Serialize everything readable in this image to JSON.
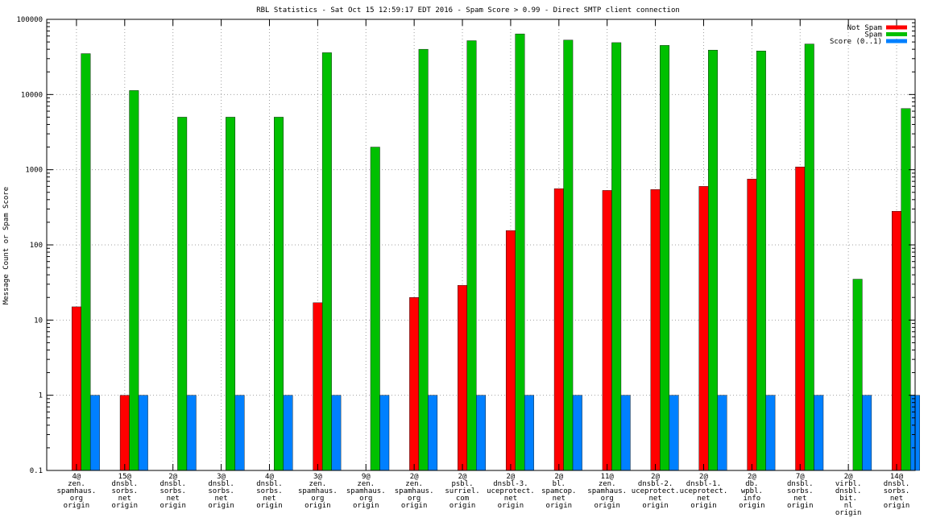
{
  "chart_data": {
    "type": "bar",
    "title": "RBL Statistics - Sat Oct 15 12:59:17 EDT 2016 - Spam Score > 0.99 - Direct SMTP client connection",
    "xlabel": "",
    "ylabel": "Message Count or Spam Score",
    "yscale": "log",
    "ylim": [
      0.1,
      100000
    ],
    "yticks": [
      "0.1",
      "1",
      "10",
      "100",
      "1000",
      "10000",
      "100000"
    ],
    "grid": true,
    "legend_position": "top-right",
    "categories": [
      [
        "4@",
        "zen.",
        "spamhaus.",
        "org",
        "origin"
      ],
      [
        "15@",
        "dnsbl.",
        "sorbs.",
        "net",
        "origin"
      ],
      [
        "2@",
        "dnsbl.",
        "sorbs.",
        "net",
        "origin"
      ],
      [
        "3@",
        "dnsbl.",
        "sorbs.",
        "net",
        "origin"
      ],
      [
        "4@",
        "dnsbl.",
        "sorbs.",
        "net",
        "origin"
      ],
      [
        "3@",
        "zen.",
        "spamhaus.",
        "org",
        "origin"
      ],
      [
        "9@",
        "zen.",
        "spamhaus.",
        "org",
        "origin"
      ],
      [
        "2@",
        "zen.",
        "spamhaus.",
        "org",
        "origin"
      ],
      [
        "2@",
        "psbl.",
        "surriel.",
        "com",
        "origin"
      ],
      [
        "2@",
        "dnsbl-3.",
        "uceprotect.",
        "net",
        "origin"
      ],
      [
        "2@",
        "bl.",
        "spamcop.",
        "net",
        "origin"
      ],
      [
        "11@",
        "zen.",
        "spamhaus.",
        "org",
        "origin"
      ],
      [
        "2@",
        "dnsbl-2.",
        "uceprotect.",
        "net",
        "origin"
      ],
      [
        "2@",
        "dnsbl-1.",
        "uceprotect.",
        "net",
        "origin"
      ],
      [
        "2@",
        "db.",
        "wpbl.",
        "info",
        "origin"
      ],
      [
        "7@",
        "dnsbl.",
        "sorbs.",
        "net",
        "origin"
      ],
      [
        "2@",
        "virbl.",
        "dnsbl.",
        "bit.",
        "nl",
        "origin"
      ],
      [
        "14@",
        "dnsbl.",
        "sorbs.",
        "net",
        "origin"
      ]
    ],
    "series": [
      {
        "name": "Not Spam",
        "color": "#ff0000",
        "values": [
          15,
          1,
          null,
          null,
          null,
          17,
          null,
          20,
          29,
          155,
          560,
          530,
          545,
          600,
          750,
          1090,
          null,
          280
        ]
      },
      {
        "name": "Spam",
        "color": "#00c000",
        "values": [
          35000,
          11300,
          5000,
          5000,
          5000,
          36000,
          2000,
          40000,
          52000,
          64000,
          53000,
          49000,
          45000,
          39000,
          38000,
          47000,
          35,
          6500
        ]
      },
      {
        "name": "Score (0..1)",
        "color": "#0080ff",
        "values": [
          1,
          1,
          1,
          1,
          1,
          1,
          1,
          1,
          1,
          1,
          1,
          1,
          1,
          1,
          1,
          1,
          1,
          1
        ]
      }
    ]
  }
}
